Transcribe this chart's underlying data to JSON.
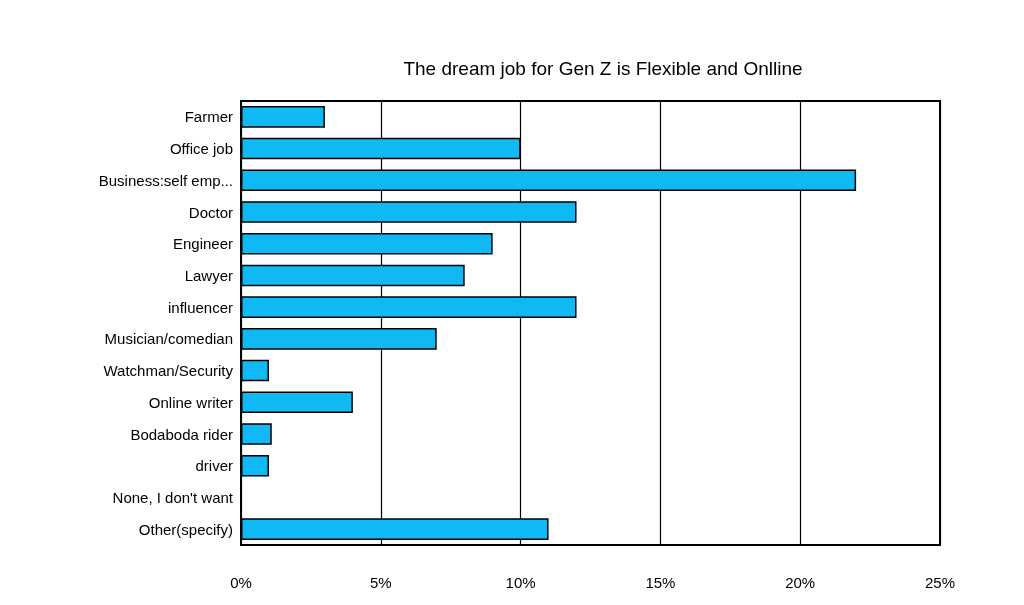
{
  "chart_data": {
    "type": "bar",
    "orientation": "horizontal",
    "title": "The dream job for Gen Z is Flexible and Onlline",
    "categories": [
      "Farmer",
      "Office job",
      "Business:self emp...",
      "Doctor",
      "Engineer",
      "Lawyer",
      "influencer",
      "Musician/comedian",
      "Watchman/Security",
      "Online writer",
      "Bodaboda rider",
      "driver",
      "None, I don't want",
      "Other(specify)"
    ],
    "values": [
      3,
      10,
      22,
      12,
      9,
      8,
      12,
      7,
      1,
      4,
      1.1,
      1,
      0,
      11
    ],
    "color": "#10b8f4",
    "xlim": [
      0,
      25
    ],
    "xticks": [
      {
        "value": 0,
        "label": "0%"
      },
      {
        "value": 5,
        "label": "5%"
      },
      {
        "value": 10,
        "label": "10%"
      },
      {
        "value": 15,
        "label": "15%"
      },
      {
        "value": 20,
        "label": "20%"
      },
      {
        "value": 25,
        "label": "25%"
      }
    ],
    "grid": "x"
  }
}
